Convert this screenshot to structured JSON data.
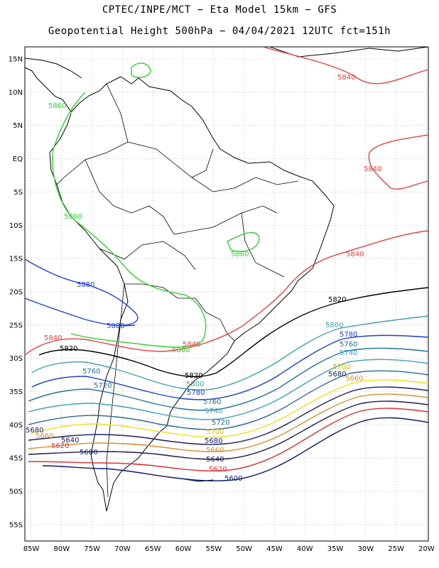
{
  "title_line1": "CPTEC/INPE/MCT −  Eta Model 15km − GFS",
  "title_line2": "Geopotential Height 500hPa − 04/04/2021 12UTC fct=151h",
  "lat_labels": [
    "15N",
    "10N",
    "5N",
    "EQ",
    "5S",
    "10S",
    "15S",
    "20S",
    "25S",
    "30S",
    "35S",
    "40S",
    "45S",
    "50S",
    "55S"
  ],
  "lon_labels": [
    "85W",
    "80W",
    "75W",
    "70W",
    "65W",
    "60W",
    "55W",
    "50W",
    "45W",
    "40W",
    "35W",
    "30W",
    "25W",
    "20W"
  ],
  "contours": [
    {
      "value": 5600,
      "label": "5600",
      "color": "#0a1a6a"
    },
    {
      "value": 5620,
      "label": "5620",
      "color": "#e03030"
    },
    {
      "value": 5640,
      "label": "5640",
      "color": "#1a1a55"
    },
    {
      "value": 5660,
      "label": "5660",
      "color": "#d89030"
    },
    {
      "value": 5680,
      "label": "5680",
      "color": "#1a2060"
    },
    {
      "value": 5700,
      "label": "5700",
      "color": "#f0e020"
    },
    {
      "value": 5720,
      "label": "5720",
      "color": "#2a6a8a"
    },
    {
      "value": 5740,
      "label": "5740",
      "color": "#3aa0c0"
    },
    {
      "value": 5760,
      "label": "5760",
      "color": "#2070a0"
    },
    {
      "value": 5780,
      "label": "5780",
      "color": "#1a40d0"
    },
    {
      "value": 5800,
      "label": "5800",
      "color": "#40a0b0"
    },
    {
      "value": 5820,
      "label": "5820",
      "color": "#000000"
    },
    {
      "value": 5840,
      "label": "5840",
      "color": "#e84040"
    },
    {
      "value": 5860,
      "label": "5860",
      "color": "#30d030"
    },
    {
      "value": 5880,
      "label": "5880",
      "color": "#2040e0"
    }
  ]
}
